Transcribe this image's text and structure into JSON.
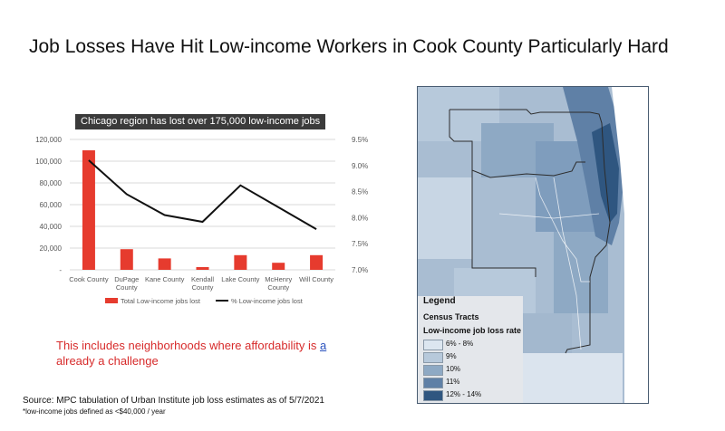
{
  "slide": {
    "title": "Job Losses Have Hit Low-income Workers in Cook County Particularly Hard",
    "note_part1": "This includes neighborhoods where affordability is ",
    "note_link": "a",
    "note_part2": "already a challenge",
    "source": "Source: MPC tabulation of Urban Institute job loss estimates as of 5/7/2021",
    "footnote": "*low-income jobs defined as <$40,000 / year"
  },
  "chart_data": {
    "type": "bar",
    "title": "Chicago region has lost over 175,000 low-income jobs",
    "categories": [
      [
        "Cook County"
      ],
      [
        "DuPage",
        "County"
      ],
      [
        "Kane County"
      ],
      [
        "Kendall",
        "County"
      ],
      [
        "Lake County"
      ],
      [
        "McHenry",
        "County"
      ],
      [
        "Will County"
      ]
    ],
    "series": [
      {
        "name": "Total Low-income jobs lost",
        "kind": "bar",
        "axis": "left",
        "color": "#e63b2e",
        "values": [
          110000,
          19000,
          10500,
          2500,
          13500,
          6500,
          13500
        ]
      },
      {
        "name": "% Low-income jobs lost",
        "kind": "line",
        "axis": "right",
        "color": "#111111",
        "values": [
          9.1,
          8.45,
          8.05,
          7.92,
          8.62,
          8.2,
          7.78
        ]
      }
    ],
    "left_axis": {
      "min": 0,
      "max": 120000,
      "ticks": [
        "-",
        "20,000",
        "40,000",
        "60,000",
        "80,000",
        "100,000",
        "120,000"
      ]
    },
    "right_axis": {
      "min": 7.0,
      "max": 9.5,
      "ticks": [
        "7.0%",
        "7.5%",
        "8.0%",
        "8.5%",
        "9.0%",
        "9.5%"
      ]
    },
    "legend_position": "bottom",
    "grid": true
  },
  "map": {
    "legend_title": "Legend",
    "legend_subtitle": "Census Tracts",
    "legend_heading": "Low-income job loss rate",
    "legend_items": [
      {
        "label": "6% - 8%",
        "color": "#dce6f0"
      },
      {
        "label": "9%",
        "color": "#b7c9db"
      },
      {
        "label": "10%",
        "color": "#8ea9c4"
      },
      {
        "label": "11%",
        "color": "#5f80a6"
      },
      {
        "label": "12% - 14%",
        "color": "#2f5680"
      }
    ]
  }
}
